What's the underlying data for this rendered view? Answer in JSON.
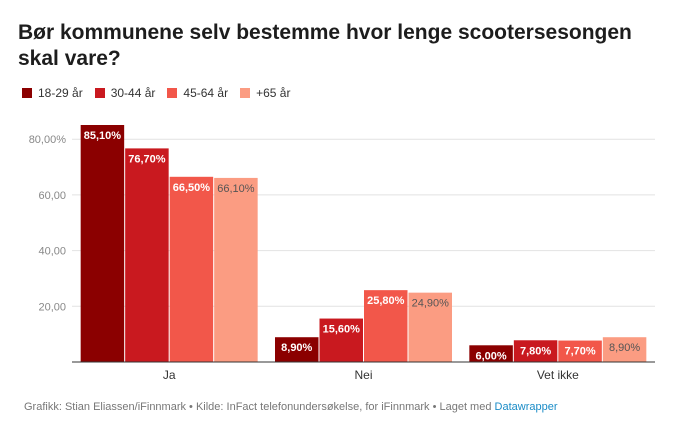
{
  "title": "Bør kommunene selv bestemme hvor lenge scootersesongen skal vare?",
  "footer": {
    "credit": "Grafikk: Stian Eliassen/iFinnmark • Kilde: InFact telefonundersøkelse, for iFinnmark • Laget med ",
    "link_text": "Datawrapper"
  },
  "chart_data": {
    "type": "bar",
    "categories": [
      "Ja",
      "Nei",
      "Vet ikke"
    ],
    "series": [
      {
        "name": "18-29 år",
        "values": [
          85.1,
          8.9,
          6.0
        ],
        "labels": [
          "85,10%",
          "8,90%",
          "6,00%"
        ],
        "color": "#8b0000",
        "label_color": "#ffffff"
      },
      {
        "name": "30-44 år",
        "values": [
          76.7,
          15.6,
          7.8
        ],
        "labels": [
          "76,70%",
          "15,60%",
          "7,80%"
        ],
        "color": "#c9191f",
        "label_color": "#ffffff"
      },
      {
        "name": "45-64 år",
        "values": [
          66.5,
          25.8,
          7.7
        ],
        "labels": [
          "66,50%",
          "25,80%",
          "7,70%"
        ],
        "color": "#f2574a",
        "label_color": "#ffffff"
      },
      {
        "name": "+65 år",
        "values": [
          66.1,
          24.9,
          8.9
        ],
        "labels": [
          "66,10%",
          "24,90%",
          "8,90%"
        ],
        "color": "#fb9c82",
        "label_color": "#555555"
      }
    ],
    "yticks": [
      {
        "value": 20,
        "label": "20,00"
      },
      {
        "value": 40,
        "label": "40,00"
      },
      {
        "value": 60,
        "label": "60,00"
      },
      {
        "value": 80,
        "label": "80,00%"
      }
    ],
    "ylim": [
      0,
      85.1
    ],
    "grid": true,
    "legend": "top-left"
  }
}
